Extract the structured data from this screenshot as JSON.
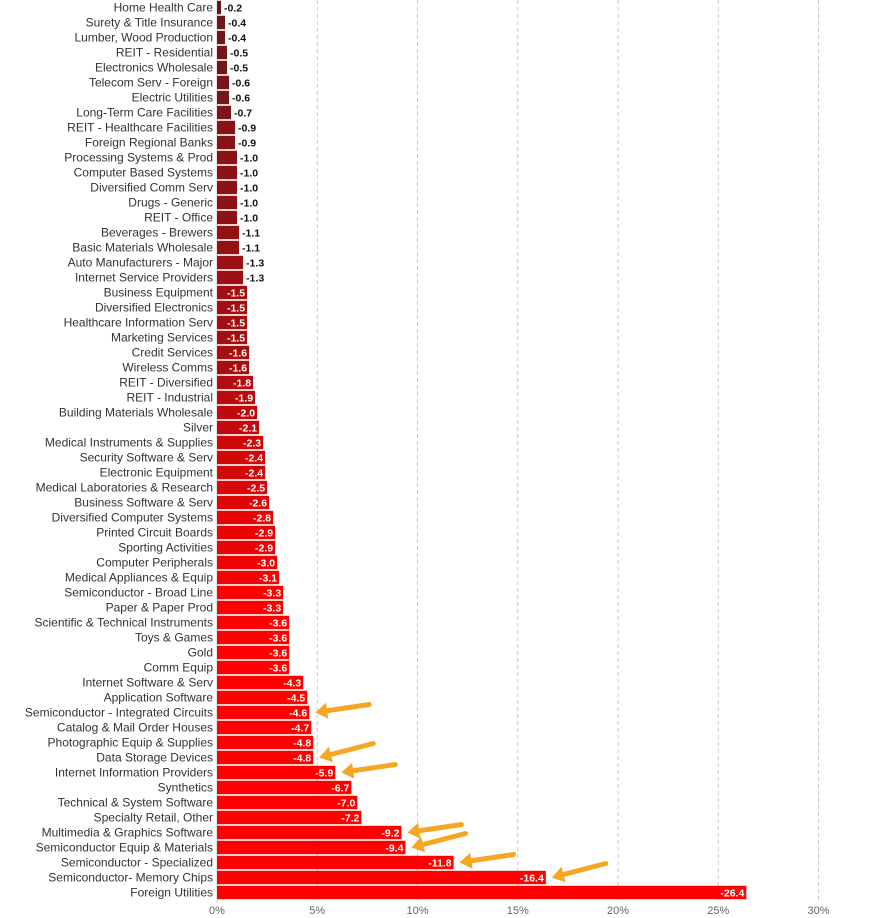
{
  "chart_data": {
    "type": "bar",
    "orientation": "horizontal",
    "title": "",
    "xlabel": "",
    "ylabel": "",
    "xlim": [
      0,
      30
    ],
    "x_ticks": [
      "0%",
      "5%",
      "10%",
      "15%",
      "20%",
      "25%",
      "30%"
    ],
    "grid": true,
    "colors": {
      "dark": "#5a1a1e",
      "bright": "#ff0000",
      "arrow": "#f5a623"
    },
    "categories": [
      "Home Health Care",
      "Surety & Title Insurance",
      "Lumber, Wood Production",
      "REIT - Residential",
      "Electronics Wholesale",
      "Telecom Serv - Foreign",
      "Electric Utilities",
      "Long-Term Care Facilities",
      "REIT - Healthcare Facilities",
      "Foreign Regional Banks",
      "Processing Systems & Prod",
      "Computer Based Systems",
      "Diversified Comm Serv",
      "Drugs - Generic",
      "REIT - Office",
      "Beverages - Brewers",
      "Basic Materials Wholesale",
      "Auto Manufacturers - Major",
      "Internet Service Providers",
      "Business Equipment",
      "Diversified Electronics",
      "Healthcare Information Serv",
      "Marketing Services",
      "Credit Services",
      "Wireless Comms",
      "REIT - Diversified",
      "REIT - Industrial",
      "Building Materials Wholesale",
      "Silver",
      "Medical Instruments & Supplies",
      "Security Software & Serv",
      "Electronic Equipment",
      "Medical Laboratories & Research",
      "Business Software & Serv",
      "Diversified Computer Systems",
      "Printed Circuit Boards",
      "Sporting Activities",
      "Computer Peripherals",
      "Medical Appliances & Equip",
      "Semiconductor - Broad Line",
      "Paper & Paper Prod",
      "Scientific & Technical Instruments",
      "Toys & Games",
      "Gold",
      "Comm Equip",
      "Internet Software & Serv",
      "Application Software",
      "Semiconductor - Integrated Circuits",
      "Catalog & Mail Order Houses",
      "Photographic Equip & Supplies",
      "Data Storage Devices",
      "Internet Information Providers",
      "Synthetics",
      "Technical & System Software",
      "Specialty Retail, Other",
      "Multimedia & Graphics Software",
      "Semiconductor Equip & Materials",
      "Semiconductor - Specialized",
      "Semiconductor- Memory Chips",
      "Foreign Utilities"
    ],
    "values": [
      -0.2,
      -0.4,
      -0.4,
      -0.5,
      -0.5,
      -0.6,
      -0.6,
      -0.7,
      -0.9,
      -0.9,
      -1.0,
      -1.0,
      -1.0,
      -1.0,
      -1.0,
      -1.1,
      -1.1,
      -1.3,
      -1.3,
      -1.5,
      -1.5,
      -1.5,
      -1.5,
      -1.6,
      -1.6,
      -1.8,
      -1.9,
      -2.0,
      -2.1,
      -2.3,
      -2.4,
      -2.4,
      -2.5,
      -2.6,
      -2.8,
      -2.9,
      -2.9,
      -3.0,
      -3.1,
      -3.3,
      -3.3,
      -3.6,
      -3.6,
      -3.6,
      -3.6,
      -4.3,
      -4.5,
      -4.6,
      -4.7,
      -4.8,
      -4.8,
      -5.9,
      -6.7,
      -7.0,
      -7.2,
      -9.2,
      -9.4,
      -11.8,
      -16.4,
      -26.4
    ],
    "value_labels": [
      "-0.2",
      "-0.4",
      "-0.4",
      "-0.5",
      "-0.5",
      "-0.6",
      "-0.6",
      "-0.7",
      "-0.9",
      "-0.9",
      "-1.0",
      "-1.0",
      "-1.0",
      "-1.0",
      "-1.0",
      "-1.1",
      "-1.1",
      "-1.3",
      "-1.3",
      "-1.5",
      "-1.5",
      "-1.5",
      "-1.5",
      "-1.6",
      "-1.6",
      "-1.8",
      "-1.9",
      "-2.0",
      "-2.1",
      "-2.3",
      "-2.4",
      "-2.4",
      "-2.5",
      "-2.6",
      "-2.8",
      "-2.9",
      "-2.9",
      "-3.0",
      "-3.1",
      "-3.3",
      "-3.3",
      "-3.6",
      "-3.6",
      "-3.6",
      "-3.6",
      "-4.3",
      "-4.5",
      "-4.6",
      "-4.7",
      "-4.8",
      "-4.8",
      "-5.9",
      "-6.7",
      "-7.0",
      "-7.2",
      "-9.2",
      "-9.4",
      "-11.8",
      "-16.4",
      "-26.4"
    ],
    "annotations": [
      {
        "type": "arrow",
        "category": "Semiconductor - Integrated Circuits"
      },
      {
        "type": "arrow",
        "category": "Data Storage Devices"
      },
      {
        "type": "arrow",
        "category": "Internet Information Providers"
      },
      {
        "type": "arrow",
        "category": "Multimedia & Graphics Software"
      },
      {
        "type": "arrow",
        "category": "Semiconductor Equip & Materials"
      },
      {
        "type": "arrow",
        "category": "Semiconductor - Specialized"
      },
      {
        "type": "arrow",
        "category": "Semiconductor- Memory Chips"
      }
    ]
  }
}
